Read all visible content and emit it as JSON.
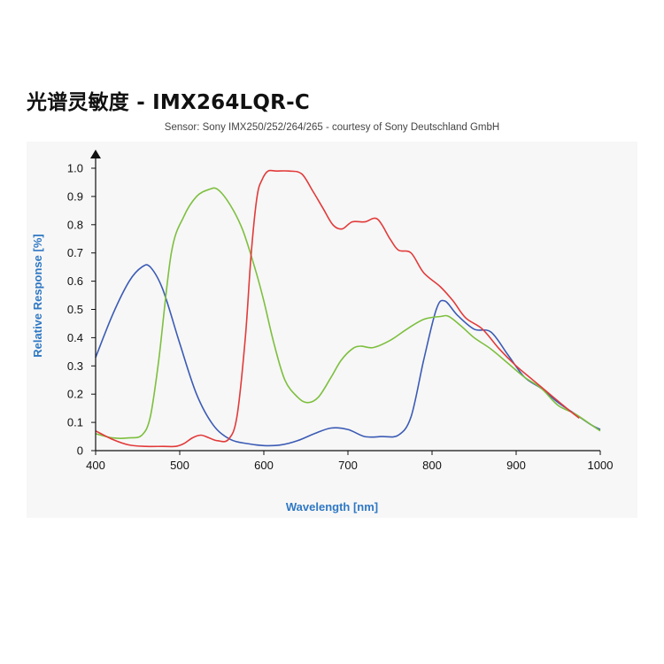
{
  "title": "光谱灵敏度 - IMX264LQR-C",
  "subtitle": "Sensor: Sony IMX250/252/264/265 - courtesy of Sony Deutschland GmbH",
  "chart_data": {
    "type": "line",
    "xlabel": "Wavelength [nm]",
    "ylabel": "Relative Response [%]",
    "xlim": [
      400,
      1000
    ],
    "ylim": [
      0,
      1.0
    ],
    "x_ticks": [
      "400",
      "500",
      "600",
      "700",
      "800",
      "900",
      "1000"
    ],
    "y_ticks": [
      "0",
      "0.1",
      "0.2",
      "0.3",
      "0.4",
      "0.5",
      "0.6",
      "0.7",
      "0.8",
      "0.9",
      "1.0"
    ],
    "grid": false,
    "legend": "none",
    "series": [
      {
        "color": "#3b5bb5",
        "x": [
          400,
          420,
          440,
          455,
          465,
          480,
          500,
          520,
          540,
          560,
          580,
          600,
          620,
          640,
          660,
          680,
          700,
          720,
          740,
          760,
          775,
          790,
          805,
          815,
          830,
          850,
          870,
          890,
          910,
          930,
          950,
          970,
          990,
          1000
        ],
        "y": [
          0.33,
          0.48,
          0.6,
          0.65,
          0.65,
          0.57,
          0.38,
          0.2,
          0.09,
          0.04,
          0.025,
          0.018,
          0.02,
          0.035,
          0.06,
          0.08,
          0.075,
          0.05,
          0.05,
          0.055,
          0.12,
          0.32,
          0.5,
          0.53,
          0.48,
          0.43,
          0.42,
          0.34,
          0.26,
          0.22,
          0.17,
          0.13,
          0.09,
          0.075
        ]
      },
      {
        "color": "#7dbf3e",
        "x": [
          400,
          420,
          440,
          455,
          465,
          475,
          490,
          505,
          520,
          535,
          545,
          560,
          575,
          590,
          600,
          612,
          625,
          640,
          652,
          665,
          680,
          692,
          705,
          715,
          730,
          750,
          770,
          790,
          810,
          820,
          835,
          850,
          870,
          890,
          910,
          930,
          950,
          970,
          990,
          1000
        ],
        "y": [
          0.06,
          0.045,
          0.045,
          0.055,
          0.12,
          0.32,
          0.7,
          0.83,
          0.9,
          0.925,
          0.925,
          0.87,
          0.78,
          0.64,
          0.53,
          0.38,
          0.25,
          0.19,
          0.17,
          0.19,
          0.26,
          0.32,
          0.36,
          0.37,
          0.365,
          0.39,
          0.43,
          0.465,
          0.475,
          0.475,
          0.44,
          0.4,
          0.36,
          0.31,
          0.26,
          0.22,
          0.16,
          0.13,
          0.09,
          0.07
        ]
      },
      {
        "color": "#e23a3a",
        "x": [
          400,
          420,
          440,
          460,
          480,
          495,
          505,
          515,
          525,
          535,
          545,
          558,
          568,
          578,
          585,
          592,
          598,
          605,
          615,
          630,
          645,
          658,
          670,
          682,
          693,
          705,
          720,
          735,
          750,
          760,
          775,
          790,
          810,
          825,
          840,
          860,
          880,
          900,
          920,
          940,
          960,
          975
        ],
        "y": [
          0.07,
          0.04,
          0.02,
          0.015,
          0.015,
          0.015,
          0.025,
          0.045,
          0.055,
          0.045,
          0.035,
          0.04,
          0.12,
          0.4,
          0.7,
          0.9,
          0.96,
          0.99,
          0.99,
          0.99,
          0.98,
          0.92,
          0.86,
          0.8,
          0.785,
          0.81,
          0.81,
          0.82,
          0.75,
          0.71,
          0.7,
          0.63,
          0.58,
          0.53,
          0.47,
          0.43,
          0.36,
          0.3,
          0.25,
          0.2,
          0.15,
          0.115
        ]
      }
    ]
  }
}
